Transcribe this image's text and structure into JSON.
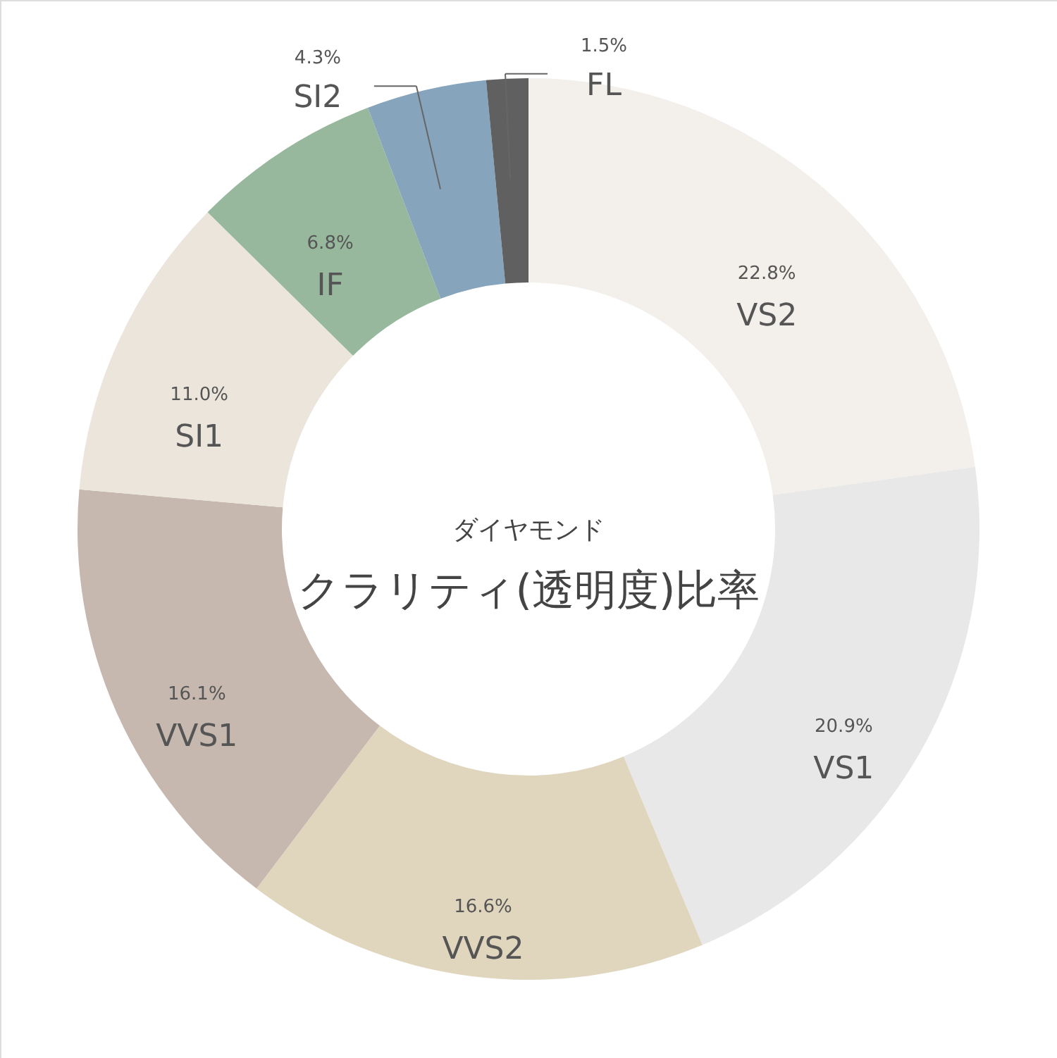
{
  "chart_data": {
    "type": "donut",
    "title": "クラリティ(透明度)比率",
    "subtitle": "ダイヤモンド",
    "categories": [
      "VS2",
      "VS1",
      "VVS2",
      "VVS1",
      "SI1",
      "IF",
      "SI2",
      "FL"
    ],
    "values": [
      22.8,
      20.9,
      16.6,
      16.1,
      11.0,
      6.8,
      4.3,
      1.5
    ],
    "colors": [
      "#f3f0eb",
      "#e8e8e8",
      "#e0d5bd",
      "#c6b8ae",
      "#ebe5db",
      "#97b89c",
      "#86a5bd",
      "#606060"
    ],
    "value_labels": [
      "22.8%",
      "20.9%",
      "16.6%",
      "16.1%",
      "11.0%",
      "6.8%",
      "4.3%",
      "1.5%"
    ]
  }
}
